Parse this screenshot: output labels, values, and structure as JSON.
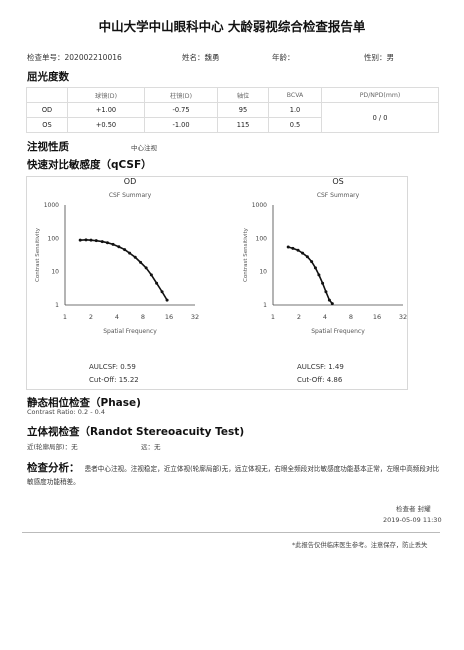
{
  "report": {
    "title": "中山大学中山眼科中心 大龄弱视综合检查报告单",
    "exam_no_label": "检查单号：",
    "exam_no": "202002210016",
    "name_label": "姓名：",
    "name": "魏勇",
    "age_label": "年龄：",
    "age": "",
    "sex_label": "性别：",
    "sex": "男"
  },
  "refraction": {
    "heading": "屈光度数",
    "columns": [
      "球镜(D)",
      "柱镜(D)",
      "轴位",
      "BCVA",
      "PD/NPD(mm)"
    ],
    "rows": [
      {
        "eye": "OD",
        "sph": "+1.00",
        "cyl": "-0.75",
        "axis": "95",
        "bcva": "1.0"
      },
      {
        "eye": "OS",
        "sph": "+0.50",
        "cyl": "-1.00",
        "axis": "115",
        "bcva": "0.5"
      }
    ],
    "pd": "0 / 0"
  },
  "fixation": {
    "heading": "注视性质",
    "value": "中心注视"
  },
  "csf": {
    "heading": "快速对比敏感度（qCSF）",
    "od": {
      "aulcsf_label": "AULCSF:",
      "aulcsf": "0.59",
      "cutoff_label": "Cut-Off:",
      "cutoff": "15.22"
    },
    "os": {
      "aulcsf_label": "AULCSF:",
      "aulcsf": "1.49",
      "cutoff_label": "Cut-Off:",
      "cutoff": "4.86"
    }
  },
  "chart_data": [
    {
      "type": "line",
      "eye_label": "OD",
      "title": "CSF Summary",
      "xlabel": "Spatial Frequency",
      "ylabel": "Contrast Sensitivity",
      "x_scale": "log",
      "y_scale": "log",
      "xlim": [
        1,
        32
      ],
      "ylim": [
        1,
        1000
      ],
      "x_ticks": [
        1,
        2,
        4,
        8,
        16,
        32
      ],
      "y_ticks": [
        1,
        10,
        100,
        1000
      ],
      "x": [
        1.5,
        1.75,
        2.0,
        2.3,
        2.7,
        3.1,
        3.6,
        4.2,
        4.9,
        5.6,
        6.5,
        7.5,
        8.7,
        10.0,
        11.5,
        13.3,
        15.2
      ],
      "y": [
        88,
        90,
        88,
        85,
        80,
        74,
        66,
        56,
        46,
        36,
        27,
        19,
        13,
        8,
        4.5,
        2.5,
        1.4
      ]
    },
    {
      "type": "line",
      "eye_label": "OS",
      "title": "CSF Summary",
      "xlabel": "Spatial Frequency",
      "ylabel": "Contrast Sensitivity",
      "x_scale": "log",
      "y_scale": "log",
      "xlim": [
        1,
        32
      ],
      "ylim": [
        1,
        1000
      ],
      "x_ticks": [
        1,
        2,
        4,
        8,
        16,
        32
      ],
      "y_ticks": [
        1,
        10,
        100,
        1000
      ],
      "x": [
        1.5,
        1.7,
        1.95,
        2.2,
        2.5,
        2.8,
        3.1,
        3.4,
        3.75,
        4.1,
        4.5,
        4.86
      ],
      "y": [
        55,
        50,
        44,
        36,
        28,
        20,
        13,
        8,
        4.5,
        2.5,
        1.4,
        1.1
      ]
    }
  ],
  "phase": {
    "heading": "静态相位检查（Phase)",
    "contrast_label": "Contrast Ratio:",
    "contrast_value": "0.2 - 0.4"
  },
  "stereo": {
    "heading": "立体视检查（Randot Stereoacuity Test)",
    "near_label": "近(轮廓局部)：",
    "near_value": "无",
    "far_label": "远：",
    "far_value": "无"
  },
  "analysis": {
    "heading": "检查分析：",
    "text": "患者中心注视。注视稳定，近立体视(轮廓局部)无，远立体视无，右眼全频段对比敏感度功能基本正常，左眼中高频段对比敏感度功能稍差。"
  },
  "footer": {
    "examiner_label": "检查者",
    "examiner": "封耀",
    "datetime": "2019-05-09 11:30",
    "note": "*此报告仅供临床医生参考。注意保存，防止丢失"
  }
}
